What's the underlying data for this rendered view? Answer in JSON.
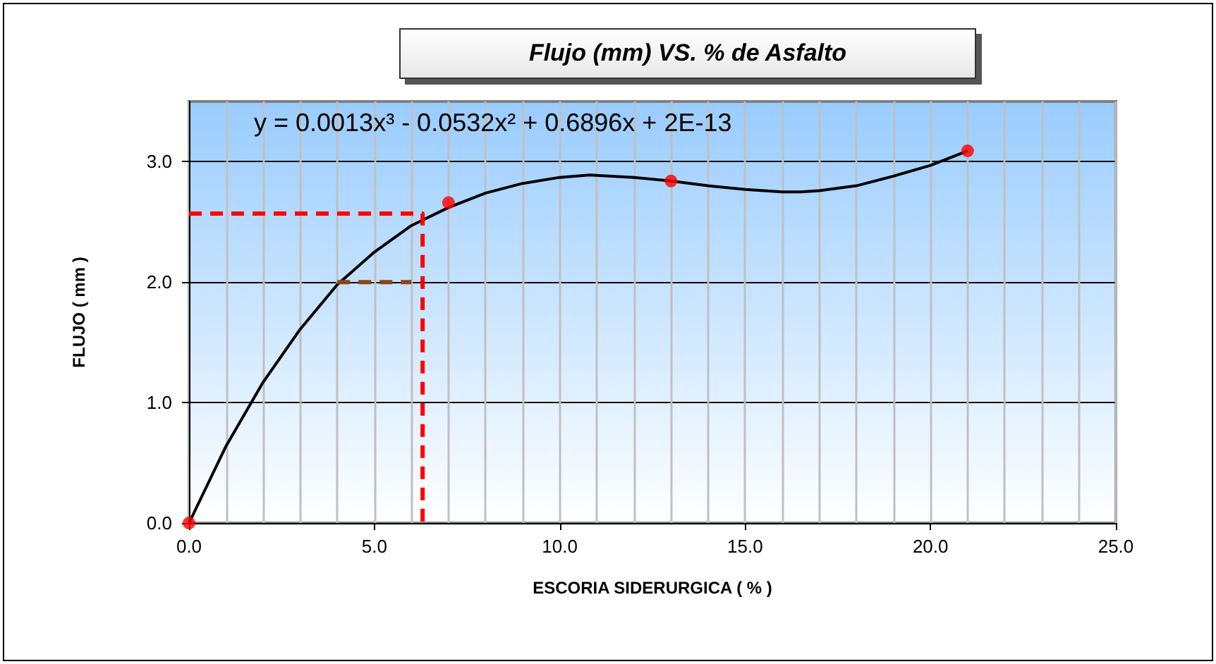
{
  "chart_data": {
    "type": "scatter",
    "title": "Flujo (mm)  VS.  % de Asfalto",
    "xlabel": "ESCORIA SIDERURGICA ( % )",
    "ylabel": "FLUJO ( mm )",
    "annotations": [
      "y = 0.0013x³ - 0.0532x² + 0.6896x + 2E-13"
    ],
    "xlim": [
      0,
      25
    ],
    "xticks": [
      {
        "value": 0,
        "label": "0.0"
      },
      {
        "value": 5,
        "label": "5.0"
      },
      {
        "value": 10,
        "label": "10.0"
      },
      {
        "value": 15,
        "label": "15.0"
      },
      {
        "value": 20,
        "label": "20.0"
      },
      {
        "value": 25,
        "label": "25.0"
      }
    ],
    "ylim": [
      0,
      3.5
    ],
    "yticks": [
      {
        "value": 0,
        "label": "0.0"
      },
      {
        "value": 1,
        "label": "1.0"
      },
      {
        "value": 2,
        "label": "2.0"
      },
      {
        "value": 3,
        "label": "3.0"
      }
    ],
    "grid": true,
    "series": [
      {
        "type": "line",
        "color": "#000000",
        "marker": "none",
        "line_style": "solid",
        "x": [
          0,
          1,
          2,
          3,
          4,
          5,
          6,
          7,
          8,
          9,
          10,
          10.8,
          12,
          13,
          14,
          15,
          16,
          16.5,
          17,
          18,
          19,
          20,
          21
        ],
        "values": [
          0,
          0.64,
          1.17,
          1.61,
          1.98,
          2.25,
          2.47,
          2.62,
          2.74,
          2.82,
          2.87,
          2.89,
          2.87,
          2.84,
          2.8,
          2.77,
          2.75,
          2.75,
          2.76,
          2.8,
          2.88,
          2.97,
          3.09
        ]
      },
      {
        "type": "line",
        "color": "#ff0000",
        "marker": "none",
        "line_style": "dashed",
        "x": [
          0,
          6.3,
          6.3
        ],
        "values": [
          2.57,
          2.57,
          0
        ]
      },
      {
        "type": "line",
        "color": "#8b4513",
        "marker": "none",
        "line_style": "dashed",
        "x": [
          4,
          6
        ],
        "values": [
          2,
          2
        ]
      },
      {
        "type": "scatter",
        "color": "#ff0000",
        "marker": "circle",
        "x": [
          0,
          7,
          13,
          21
        ],
        "values": [
          0,
          2.66,
          2.84,
          3.09
        ]
      }
    ]
  }
}
